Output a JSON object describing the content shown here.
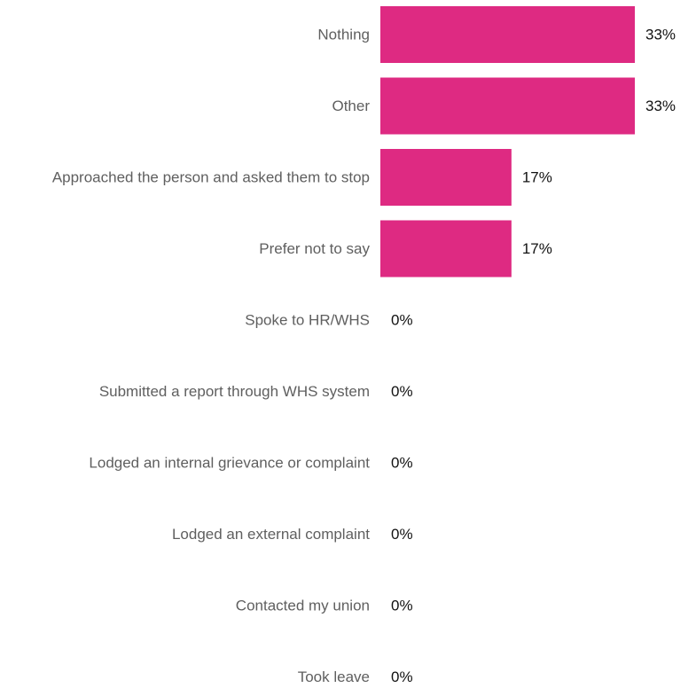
{
  "chart_data": {
    "type": "bar",
    "orientation": "horizontal",
    "categories": [
      "Nothing",
      "Other",
      "Approached the person and asked them to stop",
      "Prefer not to say",
      "Spoke to HR/WHS",
      "Submitted a report through WHS system",
      "Lodged an internal grievance or complaint",
      "Lodged an external complaint",
      "Contacted my union",
      "Took leave"
    ],
    "values": [
      33,
      33,
      17,
      17,
      0,
      0,
      0,
      0,
      0,
      0
    ],
    "value_labels": [
      "33%",
      "33%",
      "17%",
      "17%",
      "0%",
      "0%",
      "0%",
      "0%",
      "0%",
      "0%"
    ],
    "bar_color": "#de2a82",
    "xlim": [
      0,
      33
    ],
    "grid": false,
    "legend": "none"
  }
}
